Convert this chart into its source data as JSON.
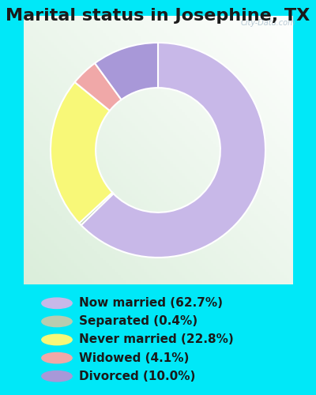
{
  "title": "Marital status in Josephine, TX",
  "slices": [
    {
      "label": "Now married (62.7%)",
      "value": 62.7,
      "color": "#c8b8e8"
    },
    {
      "label": "Separated (0.4%)",
      "value": 0.4,
      "color": "#b8ccb0"
    },
    {
      "label": "Never married (22.8%)",
      "value": 22.8,
      "color": "#f8f878"
    },
    {
      "label": "Widowed (4.1%)",
      "value": 4.1,
      "color": "#f0a8a8"
    },
    {
      "label": "Divorced (10.0%)",
      "value": 10.0,
      "color": "#a898d8"
    }
  ],
  "bg_cyan": "#00e8f8",
  "bg_chart_color": "#ddeedd",
  "title_fontsize": 16,
  "legend_fontsize": 11,
  "watermark": "City-Data.com",
  "fig_width": 4.0,
  "fig_height": 5.0
}
